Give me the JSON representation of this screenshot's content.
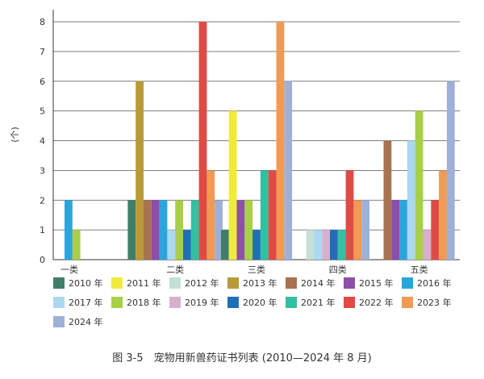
{
  "chart_data": {
    "type": "bar",
    "ylabel": "(个)",
    "ylim": [
      0,
      8
    ],
    "yticks": [
      0,
      1,
      2,
      3,
      4,
      5,
      6,
      7,
      8
    ],
    "grid": true,
    "legend_position": "bottom",
    "categories": [
      "一类",
      "二类",
      "三类",
      "四类",
      "五类"
    ],
    "series": [
      {
        "name": "2010 年",
        "color": "#3f7f68",
        "values": [
          0,
          2,
          1,
          0,
          0
        ]
      },
      {
        "name": "2011 年",
        "color": "#f0ea3c",
        "values": [
          0,
          0,
          5,
          0,
          0
        ]
      },
      {
        "name": "2012 年",
        "color": "#c4e0d4",
        "values": [
          0,
          0,
          0,
          1,
          0
        ]
      },
      {
        "name": "2013 年",
        "color": "#b89a3a",
        "values": [
          0,
          6,
          0,
          0,
          0
        ]
      },
      {
        "name": "2014 年",
        "color": "#a8734f",
        "values": [
          0,
          2,
          0,
          0,
          4
        ]
      },
      {
        "name": "2015 年",
        "color": "#8e4fa8",
        "values": [
          0,
          2,
          2,
          0,
          2
        ]
      },
      {
        "name": "2016 年",
        "color": "#2ba6dd",
        "values": [
          2,
          2,
          0,
          0,
          2
        ]
      },
      {
        "name": "2017 年",
        "color": "#aad8f0",
        "values": [
          0,
          1,
          0,
          1,
          4
        ]
      },
      {
        "name": "2018 年",
        "color": "#a8cf47",
        "values": [
          1,
          2,
          2,
          0,
          5
        ]
      },
      {
        "name": "2019 年",
        "color": "#d8b0cf",
        "values": [
          0,
          0,
          0,
          1,
          1
        ]
      },
      {
        "name": "2020 年",
        "color": "#1f6fb8",
        "values": [
          0,
          1,
          1,
          1,
          0
        ]
      },
      {
        "name": "2021 年",
        "color": "#34bfa0",
        "values": [
          0,
          2,
          3,
          1,
          0
        ]
      },
      {
        "name": "2022 年",
        "color": "#e04a45",
        "values": [
          0,
          8,
          3,
          3,
          2
        ]
      },
      {
        "name": "2023 年",
        "color": "#f19a55",
        "values": [
          0,
          3,
          8,
          2,
          3
        ]
      },
      {
        "name": "2024 年",
        "color": "#9eb0d8",
        "values": [
          0,
          2,
          6,
          2,
          6
        ]
      }
    ]
  },
  "caption": "图 3-5　宠物用新兽药证书列表 (2010—2024 年 8 月)"
}
